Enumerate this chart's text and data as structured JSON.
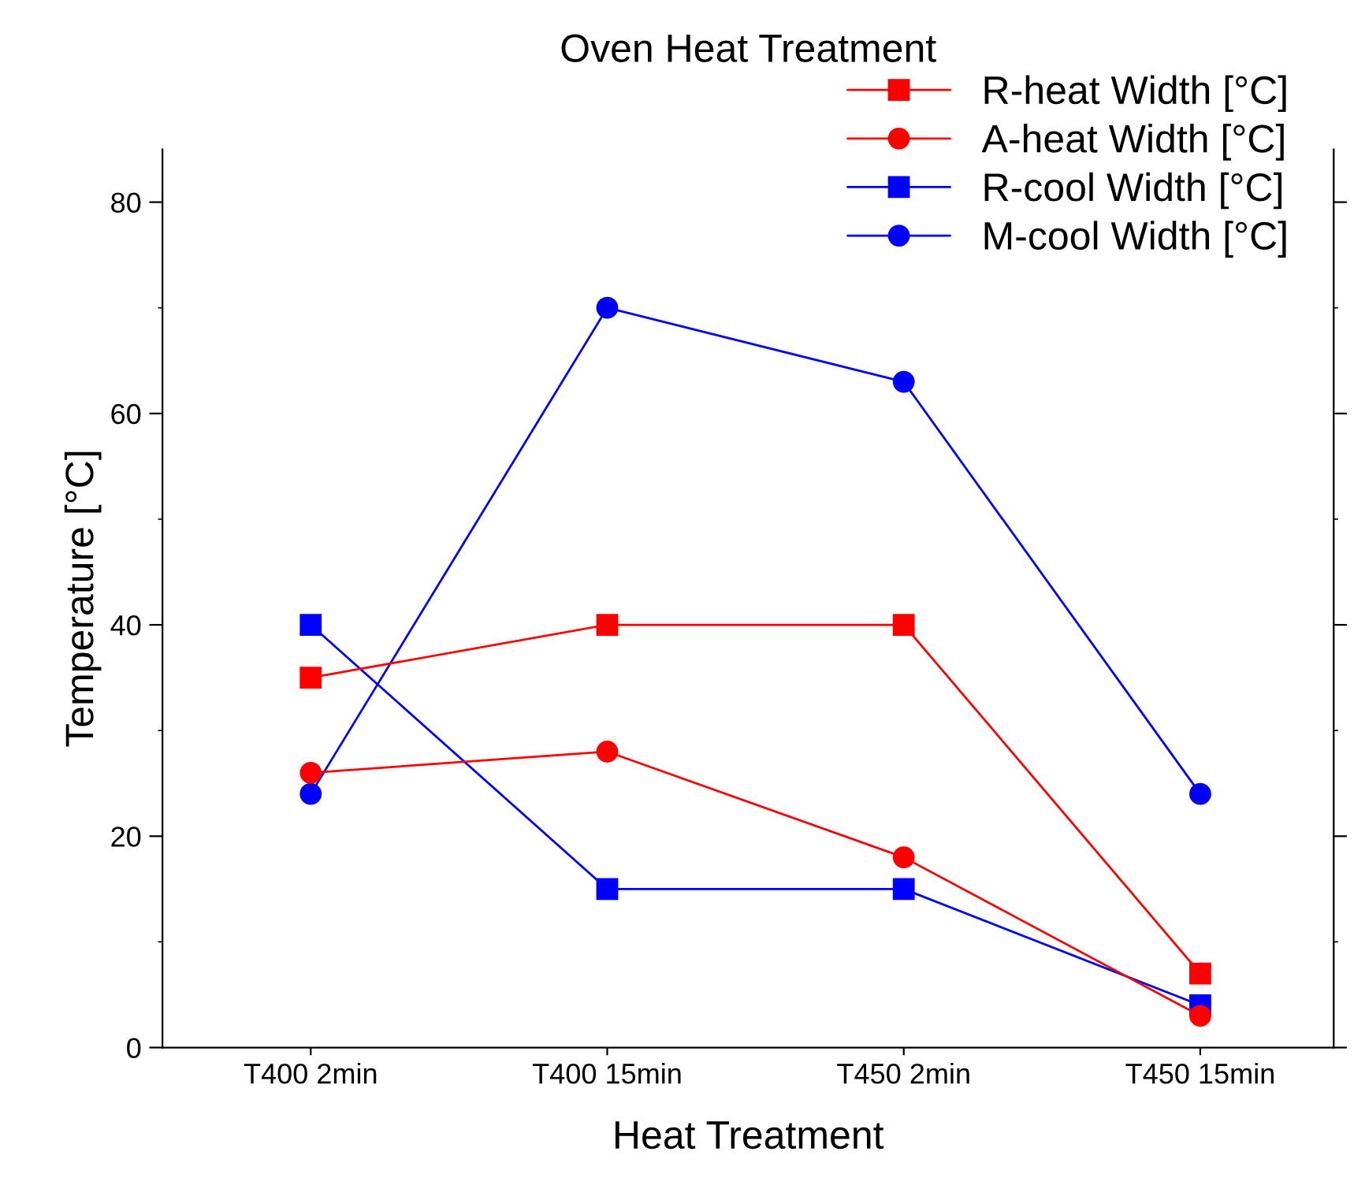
{
  "chart_data": {
    "type": "line",
    "title": "Oven Heat Treatment",
    "xlabel": "Heat Treatment",
    "ylabel": "Temperature [°C]",
    "categories": [
      "T400 2min",
      "T400 15min",
      "T450 2min",
      "T450 15min"
    ],
    "series": [
      {
        "name": "R-heat Width [°C]",
        "color": "#ff0000",
        "marker": "square",
        "values": [
          35,
          40,
          40,
          7
        ]
      },
      {
        "name": "A-heat Width [°C]",
        "color": "#ff0000",
        "marker": "circle",
        "values": [
          26,
          28,
          18,
          3
        ]
      },
      {
        "name": "R-cool Width [°C]",
        "color": "#0000ff",
        "marker": "square",
        "values": [
          40,
          15,
          15,
          4
        ]
      },
      {
        "name": "M-cool Width [°C]",
        "color": "#0000ff",
        "marker": "circle",
        "values": [
          24,
          70,
          63,
          24
        ]
      }
    ],
    "ylim": [
      0,
      85
    ],
    "yticks": [
      0,
      20,
      40,
      60,
      80
    ],
    "grid": false,
    "legend": "top right",
    "line_style": "solid"
  }
}
